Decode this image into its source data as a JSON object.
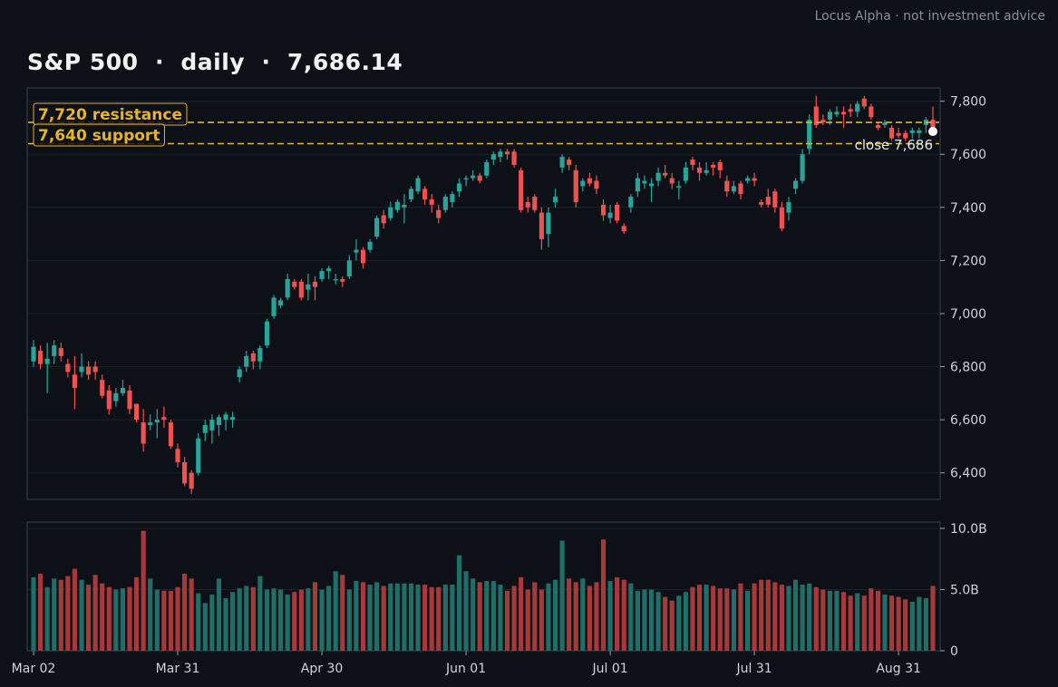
{
  "header": {
    "credit": "Locus Alpha · not investment advice",
    "title_name": "S&P 500",
    "title_sep": "·",
    "title_interval": "daily",
    "title_price": "7,686.14"
  },
  "chart_data": {
    "type": "candlestick",
    "price_axis": {
      "ylim": [
        6300,
        7850
      ],
      "ticks": [
        "6,400",
        "6,600",
        "6,800",
        "7,000",
        "7,200",
        "7,400",
        "7,600",
        "7,800"
      ],
      "tick_values": [
        6400,
        6600,
        6800,
        7000,
        7200,
        7400,
        7600,
        7800
      ]
    },
    "volume_axis": {
      "ylim": [
        0,
        10
      ],
      "unit": "B",
      "ticks": [
        "0",
        "5.0B",
        "10.0B"
      ],
      "tick_values": [
        0,
        5,
        10
      ]
    },
    "x_ticks": [
      {
        "label": "Mar 02",
        "index": 0
      },
      {
        "label": "Mar 31",
        "index": 21
      },
      {
        "label": "Apr 30",
        "index": 42
      },
      {
        "label": "Jun 01",
        "index": 63
      },
      {
        "label": "Jul 01",
        "index": 84
      },
      {
        "label": "Jul 31",
        "index": 105
      },
      {
        "label": "Aug 31",
        "index": 126
      }
    ],
    "levels": [
      {
        "label": "7,720  resistance",
        "value": 7720,
        "color": "#e8b324"
      },
      {
        "label": "7,640  support",
        "value": 7640,
        "color": "#e8b324"
      }
    ],
    "last_close": {
      "label": "close 7,686",
      "value": 7686
    },
    "colors": {
      "up": "#26a69a",
      "down": "#ef5350",
      "vol_up": "#1f6f68",
      "vol_down": "#a63a3a",
      "grid": "#1c212b",
      "frame": "#3a3f4a"
    },
    "candles": [
      [
        6820,
        6900,
        6800,
        6875
      ],
      [
        6860,
        6880,
        6790,
        6810
      ],
      [
        6810,
        6890,
        6700,
        6830
      ],
      [
        6840,
        6900,
        6810,
        6880
      ],
      [
        6870,
        6890,
        6820,
        6840
      ],
      [
        6810,
        6830,
        6760,
        6780
      ],
      [
        6770,
        6840,
        6640,
        6720
      ],
      [
        6780,
        6850,
        6760,
        6800
      ],
      [
        6800,
        6820,
        6750,
        6770
      ],
      [
        6800,
        6820,
        6750,
        6780
      ],
      [
        6750,
        6770,
        6680,
        6690
      ],
      [
        6710,
        6730,
        6620,
        6640
      ],
      [
        6670,
        6720,
        6650,
        6700
      ],
      [
        6700,
        6750,
        6690,
        6720
      ],
      [
        6710,
        6730,
        6620,
        6640
      ],
      [
        6660,
        6660,
        6590,
        6600
      ],
      [
        6590,
        6640,
        6480,
        6510
      ],
      [
        6580,
        6620,
        6560,
        6590
      ],
      [
        6590,
        6640,
        6530,
        6600
      ],
      [
        6610,
        6650,
        6570,
        6600
      ],
      [
        6590,
        6600,
        6490,
        6500
      ],
      [
        6490,
        6510,
        6420,
        6440
      ],
      [
        6440,
        6460,
        6350,
        6360
      ],
      [
        6400,
        6410,
        6320,
        6340
      ],
      [
        6400,
        6550,
        6390,
        6530
      ],
      [
        6550,
        6600,
        6520,
        6580
      ],
      [
        6560,
        6620,
        6510,
        6600
      ],
      [
        6580,
        6620,
        6540,
        6610
      ],
      [
        6600,
        6630,
        6560,
        6620
      ],
      [
        6600,
        6630,
        6570,
        6610
      ],
      [
        6760,
        6800,
        6740,
        6790
      ],
      [
        6800,
        6860,
        6780,
        6840
      ],
      [
        6850,
        6860,
        6790,
        6820
      ],
      [
        6820,
        6880,
        6790,
        6870
      ],
      [
        6880,
        6980,
        6870,
        6970
      ],
      [
        6990,
        7070,
        6980,
        7060
      ],
      [
        7030,
        7060,
        7020,
        7050
      ],
      [
        7060,
        7150,
        7050,
        7130
      ],
      [
        7120,
        7130,
        7090,
        7100
      ],
      [
        7120,
        7130,
        7050,
        7060
      ],
      [
        7090,
        7150,
        7050,
        7110
      ],
      [
        7120,
        7140,
        7050,
        7100
      ],
      [
        7130,
        7170,
        7120,
        7160
      ],
      [
        7160,
        7180,
        7130,
        7170
      ],
      [
        7130,
        7150,
        7110,
        7130
      ],
      [
        7130,
        7140,
        7100,
        7120
      ],
      [
        7140,
        7220,
        7130,
        7200
      ],
      [
        7230,
        7280,
        7200,
        7240
      ],
      [
        7240,
        7250,
        7170,
        7190
      ],
      [
        7240,
        7280,
        7230,
        7270
      ],
      [
        7290,
        7370,
        7280,
        7360
      ],
      [
        7370,
        7390,
        7320,
        7340
      ],
      [
        7360,
        7420,
        7350,
        7400
      ],
      [
        7390,
        7430,
        7380,
        7420
      ],
      [
        7400,
        7450,
        7340,
        7410
      ],
      [
        7430,
        7480,
        7420,
        7470
      ],
      [
        7460,
        7520,
        7450,
        7510
      ],
      [
        7470,
        7480,
        7410,
        7430
      ],
      [
        7430,
        7450,
        7380,
        7410
      ],
      [
        7390,
        7410,
        7340,
        7360
      ],
      [
        7390,
        7450,
        7380,
        7440
      ],
      [
        7420,
        7460,
        7400,
        7450
      ],
      [
        7460,
        7510,
        7440,
        7490
      ],
      [
        7510,
        7520,
        7480,
        7510
      ],
      [
        7510,
        7540,
        7500,
        7520
      ],
      [
        7520,
        7530,
        7490,
        7500
      ],
      [
        7520,
        7580,
        7510,
        7570
      ],
      [
        7580,
        7610,
        7560,
        7600
      ],
      [
        7590,
        7620,
        7570,
        7610
      ],
      [
        7610,
        7620,
        7580,
        7600
      ],
      [
        7610,
        7620,
        7550,
        7560
      ],
      [
        7540,
        7550,
        7380,
        7390
      ],
      [
        7420,
        7440,
        7380,
        7400
      ],
      [
        7440,
        7450,
        7380,
        7390
      ],
      [
        7380,
        7400,
        7240,
        7280
      ],
      [
        7300,
        7400,
        7250,
        7380
      ],
      [
        7420,
        7470,
        7400,
        7440
      ],
      [
        7550,
        7600,
        7530,
        7590
      ],
      [
        7580,
        7590,
        7540,
        7560
      ],
      [
        7540,
        7560,
        7400,
        7420
      ],
      [
        7480,
        7510,
        7460,
        7500
      ],
      [
        7510,
        7530,
        7480,
        7490
      ],
      [
        7500,
        7520,
        7450,
        7470
      ],
      [
        7410,
        7430,
        7350,
        7370
      ],
      [
        7360,
        7410,
        7340,
        7380
      ],
      [
        7410,
        7420,
        7340,
        7350
      ],
      [
        7330,
        7340,
        7300,
        7310
      ],
      [
        7400,
        7450,
        7380,
        7440
      ],
      [
        7460,
        7530,
        7440,
        7510
      ],
      [
        7490,
        7520,
        7470,
        7500
      ],
      [
        7480,
        7510,
        7420,
        7490
      ],
      [
        7500,
        7550,
        7480,
        7530
      ],
      [
        7530,
        7560,
        7510,
        7520
      ],
      [
        7510,
        7530,
        7470,
        7490
      ],
      [
        7480,
        7500,
        7430,
        7480
      ],
      [
        7500,
        7570,
        7490,
        7550
      ],
      [
        7580,
        7590,
        7540,
        7560
      ],
      [
        7550,
        7570,
        7500,
        7530
      ],
      [
        7530,
        7570,
        7520,
        7540
      ],
      [
        7560,
        7570,
        7520,
        7550
      ],
      [
        7570,
        7580,
        7510,
        7540
      ],
      [
        7500,
        7520,
        7440,
        7460
      ],
      [
        7460,
        7500,
        7450,
        7480
      ],
      [
        7490,
        7500,
        7430,
        7450
      ],
      [
        7500,
        7520,
        7490,
        7510
      ],
      [
        7510,
        7530,
        7480,
        7500
      ],
      [
        7420,
        7430,
        7400,
        7410
      ],
      [
        7440,
        7470,
        7400,
        7410
      ],
      [
        7460,
        7470,
        7380,
        7400
      ],
      [
        7400,
        7420,
        7310,
        7320
      ],
      [
        7380,
        7440,
        7350,
        7420
      ],
      [
        7470,
        7510,
        7450,
        7500
      ],
      [
        7500,
        7620,
        7490,
        7600
      ],
      [
        7620,
        7750,
        7600,
        7730
      ],
      [
        7780,
        7820,
        7700,
        7710
      ],
      [
        7730,
        7750,
        7710,
        7720
      ],
      [
        7730,
        7770,
        7710,
        7760
      ],
      [
        7750,
        7780,
        7740,
        7760
      ],
      [
        7760,
        7780,
        7700,
        7750
      ],
      [
        7770,
        7790,
        7740,
        7760
      ],
      [
        7760,
        7800,
        7740,
        7790
      ],
      [
        7810,
        7820,
        7770,
        7780
      ],
      [
        7780,
        7790,
        7730,
        7740
      ],
      [
        7710,
        7720,
        7690,
        7700
      ],
      [
        7710,
        7730,
        7700,
        7720
      ],
      [
        7700,
        7710,
        7650,
        7660
      ],
      [
        7680,
        7700,
        7660,
        7670
      ],
      [
        7680,
        7690,
        7650,
        7660
      ],
      [
        7680,
        7700,
        7660,
        7690
      ],
      [
        7680,
        7700,
        7660,
        7690
      ],
      [
        7710,
        7740,
        7680,
        7730
      ],
      [
        7730,
        7780,
        7680,
        7690
      ]
    ],
    "volume": [
      6.0,
      6.3,
      5.2,
      5.9,
      5.8,
      6.1,
      6.7,
      5.8,
      5.4,
      6.2,
      5.5,
      5.2,
      5.0,
      5.1,
      5.2,
      6.0,
      9.8,
      5.9,
      5.0,
      4.9,
      4.9,
      5.2,
      6.3,
      5.9,
      4.7,
      3.9,
      4.6,
      5.9,
      4.3,
      4.8,
      5.1,
      5.3,
      5.2,
      6.1,
      5.0,
      5.1,
      5.0,
      4.6,
      4.8,
      5.0,
      5.1,
      5.6,
      5.0,
      5.3,
      6.5,
      6.2,
      5.0,
      5.7,
      5.6,
      5.4,
      5.6,
      5.3,
      5.5,
      5.5,
      5.5,
      5.5,
      5.4,
      5.4,
      5.2,
      5.2,
      5.4,
      5.4,
      7.8,
      6.5,
      5.9,
      5.6,
      5.7,
      5.7,
      5.4,
      4.9,
      5.3,
      6.0,
      5.0,
      5.6,
      5.0,
      5.5,
      5.8,
      9.0,
      5.9,
      5.6,
      5.9,
      5.3,
      5.6,
      9.1,
      5.7,
      6.0,
      5.8,
      5.5,
      4.9,
      5.0,
      5.0,
      4.8,
      4.4,
      4.1,
      4.5,
      4.8,
      5.2,
      5.4,
      5.4,
      5.3,
      5.1,
      5.1,
      5.0,
      5.5,
      4.9,
      5.5,
      5.8,
      5.8,
      5.6,
      5.4,
      5.3,
      5.8,
      5.4,
      5.5,
      5.2,
      5.0,
      4.9,
      4.9,
      4.8,
      4.5,
      4.7,
      4.5,
      5.1,
      4.9,
      4.6,
      4.5,
      4.4,
      4.2,
      4.0,
      4.4,
      4.3,
      5.3
    ]
  }
}
